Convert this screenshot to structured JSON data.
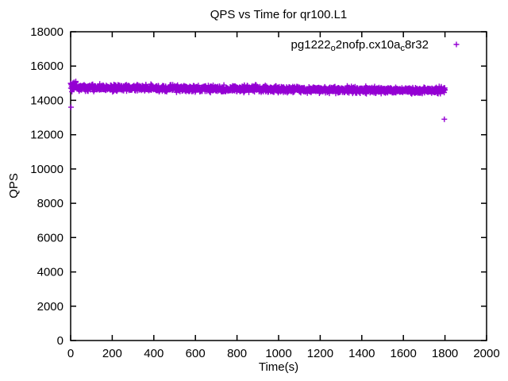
{
  "chart_data": {
    "type": "scatter",
    "title": "QPS vs Time for qr100.L1",
    "xlabel": "Time(s)",
    "ylabel": "QPS",
    "xlim": [
      0,
      2000
    ],
    "ylim": [
      0,
      18000
    ],
    "x_ticks": [
      0,
      200,
      400,
      600,
      800,
      1000,
      1200,
      1400,
      1600,
      1800,
      2000
    ],
    "y_ticks": [
      0,
      2000,
      4000,
      6000,
      8000,
      10000,
      12000,
      14000,
      16000,
      18000
    ],
    "grid": false,
    "background_color": "#ffffff",
    "axis_color": "#000000",
    "legend": {
      "position": "top-right-inside",
      "entries": [
        {
          "label": "pg1222_o2nofp.cx10a_c8r32",
          "label_segments": [
            {
              "text": "pg1222",
              "sub": false
            },
            {
              "text": "o",
              "sub": true
            },
            {
              "text": "2nofp.cx10a",
              "sub": false
            },
            {
              "text": "c",
              "sub": true
            },
            {
              "text": "8r32",
              "sub": false
            }
          ],
          "marker": "plus",
          "color": "#9400d3"
        }
      ]
    },
    "series": [
      {
        "name": "pg1222_o2nofp.cx10a_c8r32",
        "color": "#9400d3",
        "marker": "plus",
        "marker_size": 7,
        "summary": "Steady QPS band of ~1 sample/second from t=0s to t=1800s, mean ~14750 QPS at start drifting to ~14570 QPS at end, noise roughly +/-260 QPS, slightly wider/higher spread in first ~25s (up to ~15050).",
        "sampling": {
          "x_start": 0,
          "x_end": 1800,
          "step": 1
        },
        "trend": {
          "qps_at_start": 14750,
          "qps_at_end": 14570
        },
        "noise": {
          "model": "bell",
          "amplitude": 260
        },
        "start_transient": {
          "duration_s": 25,
          "amplitude_scale": 1.7,
          "mean_shift": 60
        },
        "outliers": [
          [
            2,
            13600
          ],
          [
            1797,
            12900
          ]
        ],
        "prng_seed": 20240608
      }
    ]
  }
}
